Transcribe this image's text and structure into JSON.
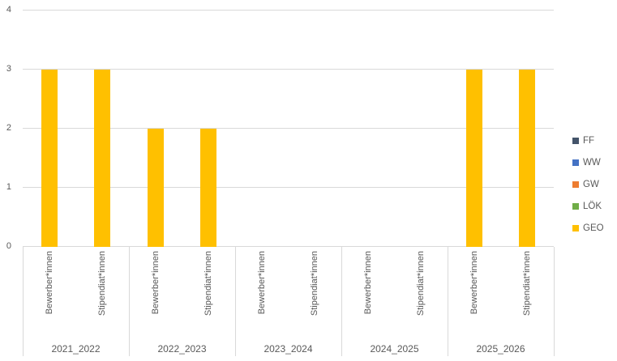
{
  "chart_data": {
    "type": "bar",
    "subtype": "stacked-column",
    "title": "",
    "xlabel": "",
    "ylabel": "",
    "ylim": [
      0,
      4
    ],
    "y_ticks": [
      0,
      1,
      2,
      3,
      4
    ],
    "grid": true,
    "legend_position": "right",
    "groups": [
      "2021_2022",
      "2022_2023",
      "2023_2024",
      "2024_2025",
      "2025_2026"
    ],
    "categories_per_group": [
      "Bewerber*innen",
      "Stipendiat*innen"
    ],
    "series": [
      {
        "name": "FF",
        "color": "#44546A",
        "values": [
          0,
          0,
          0,
          0,
          0,
          0,
          0,
          0,
          0,
          0
        ]
      },
      {
        "name": "WW",
        "color": "#4472C4",
        "values": [
          0,
          0,
          0,
          0,
          0,
          0,
          0,
          0,
          0,
          0
        ]
      },
      {
        "name": "GW",
        "color": "#ED7D31",
        "values": [
          0,
          0,
          0,
          0,
          0,
          0,
          0,
          0,
          0,
          0
        ]
      },
      {
        "name": "LÖK",
        "color": "#70AD47",
        "values": [
          0,
          0,
          0,
          0,
          0,
          0,
          0,
          0,
          0,
          0
        ]
      },
      {
        "name": "GEO",
        "color": "#FFC000",
        "values": [
          3,
          3,
          2,
          2,
          0,
          0,
          0,
          0,
          3,
          3
        ]
      }
    ],
    "colors": {
      "gridline": "#D9D9D9",
      "axis_line": "#D9D9D9",
      "tick_text": "#595959",
      "category_text": "#595959",
      "group_text": "#595959",
      "legend_text": "#595959",
      "background": "#FFFFFF"
    }
  }
}
